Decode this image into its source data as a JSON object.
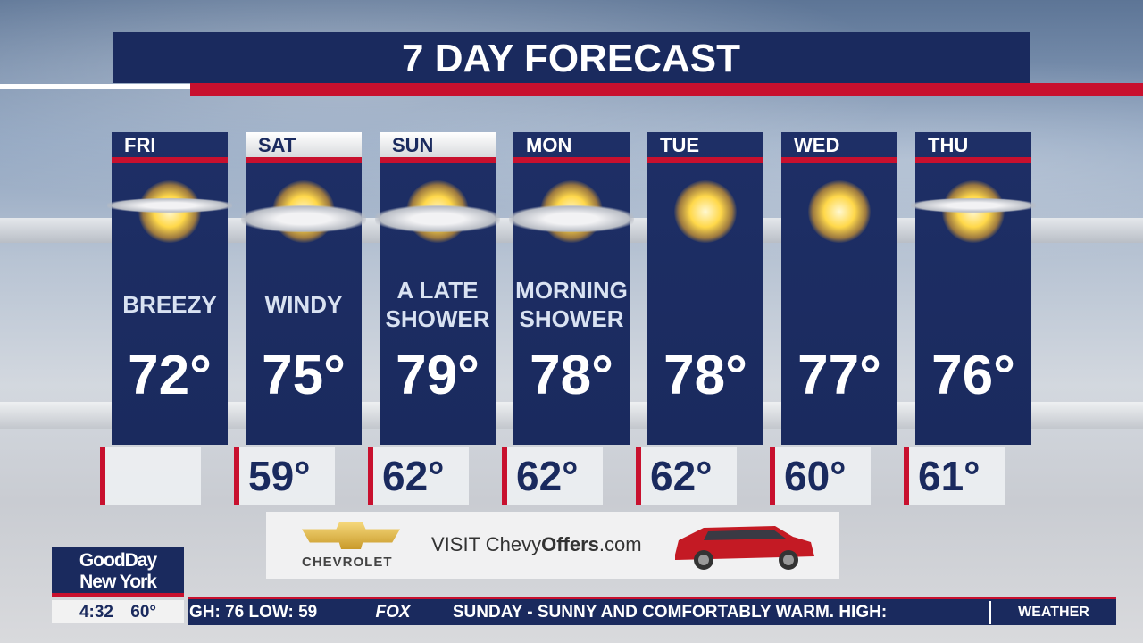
{
  "title": "7 DAY FORECAST",
  "days": [
    {
      "day": "FRI",
      "condition": "BREEZY",
      "high": "72°",
      "low": "",
      "icon": "partly-cloudy-sun-icon",
      "header_style": "dark"
    },
    {
      "day": "SAT",
      "condition": "WINDY",
      "high": "75°",
      "low": "59°",
      "icon": "mostly-cloudy-sun-icon",
      "header_style": "light"
    },
    {
      "day": "SUN",
      "condition": "A LATE SHOWER",
      "high": "79°",
      "low": "62°",
      "icon": "mostly-cloudy-sun-icon",
      "header_style": "light"
    },
    {
      "day": "MON",
      "condition": "MORNING SHOWER",
      "high": "78°",
      "low": "62°",
      "icon": "mostly-cloudy-sun-icon",
      "header_style": "dark"
    },
    {
      "day": "TUE",
      "condition": "",
      "high": "78°",
      "low": "62°",
      "icon": "sun-icon",
      "header_style": "dark"
    },
    {
      "day": "WED",
      "condition": "",
      "high": "77°",
      "low": "60°",
      "icon": "sun-icon",
      "header_style": "dark"
    },
    {
      "day": "THU",
      "condition": "",
      "high": "76°",
      "low": "61°",
      "icon": "partly-cloudy-sun-icon",
      "header_style": "dark"
    }
  ],
  "ad": {
    "brand": "CHEVROLET",
    "visit": "VISIT",
    "site_a": "Chevy",
    "site_b": "Offers",
    "site_c": ".com"
  },
  "show": {
    "line1": "GoodDay",
    "line2": "New York",
    "time": "4:32",
    "temp": "60°"
  },
  "ticker": {
    "text1": "GH:  76  LOW:  59",
    "network": "FOX",
    "text2": "SUNDAY - SUNNY AND COMFORTABLY WARM. HIGH:",
    "label": "WEATHER"
  },
  "colors": {
    "navy": "#1a2a5e",
    "red": "#c8102e"
  }
}
